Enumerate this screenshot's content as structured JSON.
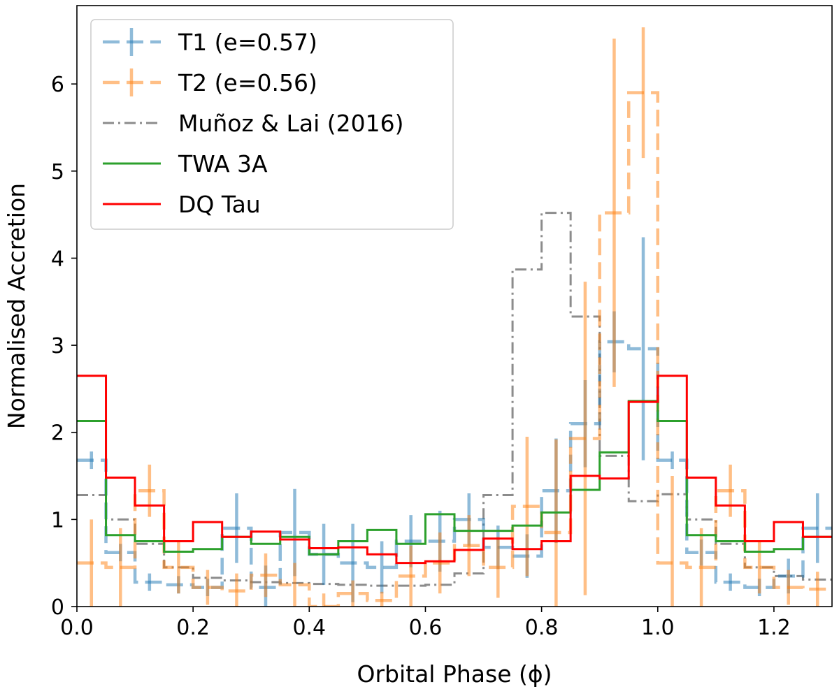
{
  "chart_data": {
    "type": "line",
    "subtype": "step-histogram",
    "title": "",
    "xlabel": "Orbital Phase (ϕ)",
    "ylabel": "Normalised Accretion",
    "xlim": [
      0.0,
      1.3
    ],
    "ylim": [
      0,
      6.9
    ],
    "x_ticks": [
      "0.0",
      "0.2",
      "0.4",
      "0.6",
      "0.8",
      "1.0",
      "1.2"
    ],
    "x_tick_values": [
      0.0,
      0.2,
      0.4,
      0.6,
      0.8,
      1.0,
      1.2
    ],
    "y_ticks": [
      "0",
      "1",
      "2",
      "3",
      "4",
      "5",
      "6"
    ],
    "y_tick_values": [
      0,
      1,
      2,
      3,
      4,
      5,
      6
    ],
    "legend_position": "top-left",
    "bin_width": 0.05,
    "series": [
      {
        "name": "Muñoz & Lai (2016)",
        "color": "#7f7f7f",
        "style": "dashdot",
        "bin_starts": [
          0.0,
          0.05,
          0.1,
          0.15,
          0.2,
          0.25,
          0.3,
          0.35,
          0.4,
          0.45,
          0.5,
          0.55,
          0.6,
          0.65,
          0.7,
          0.75,
          0.8,
          0.85,
          0.9,
          0.95,
          1.0,
          1.05,
          1.1,
          1.15,
          1.2,
          1.25
        ],
        "values": [
          1.28,
          1.0,
          0.72,
          0.45,
          0.33,
          0.3,
          0.28,
          0.27,
          0.26,
          0.25,
          0.24,
          0.24,
          0.25,
          0.38,
          1.28,
          3.87,
          4.52,
          3.33,
          1.73,
          1.21,
          1.29,
          1.0,
          0.72,
          0.45,
          0.35,
          0.31
        ]
      },
      {
        "name": "T1 (e=0.57)",
        "color": "#1f77b4",
        "style": "dashed",
        "errorbars": true,
        "bin_starts": [
          0.0,
          0.05,
          0.1,
          0.15,
          0.2,
          0.25,
          0.3,
          0.35,
          0.4,
          0.45,
          0.5,
          0.55,
          0.6,
          0.65,
          0.7,
          0.75,
          0.8,
          0.85,
          0.9,
          0.95,
          1.0,
          1.05,
          1.1,
          1.15,
          1.2,
          1.25
        ],
        "values": [
          1.68,
          0.62,
          0.28,
          0.25,
          0.22,
          0.9,
          0.22,
          0.85,
          0.6,
          0.5,
          0.45,
          0.75,
          0.75,
          1.0,
          0.68,
          0.58,
          1.33,
          2.1,
          3.04,
          2.96,
          1.68,
          0.62,
          0.28,
          0.22,
          0.35,
          0.9
        ],
        "errors": [
          0.1,
          0.1,
          0.1,
          0.1,
          0.1,
          0.4,
          0.25,
          0.5,
          0.35,
          0.45,
          0.3,
          0.3,
          0.35,
          0.3,
          0.25,
          0.25,
          0.6,
          0.5,
          0.35,
          1.28,
          0.1,
          0.15,
          0.1,
          0.1,
          0.2,
          0.4
        ]
      },
      {
        "name": "T2 (e=0.56)",
        "color": "#ff7f0e",
        "style": "dashed",
        "errorbars": true,
        "bin_starts": [
          0.0,
          0.05,
          0.1,
          0.15,
          0.2,
          0.25,
          0.3,
          0.35,
          0.4,
          0.45,
          0.5,
          0.55,
          0.6,
          0.65,
          0.7,
          0.75,
          0.8,
          0.85,
          0.9,
          0.95,
          1.0,
          1.05,
          1.1,
          1.15,
          1.2,
          1.25
        ],
        "values": [
          0.5,
          0.45,
          1.33,
          0.45,
          0.22,
          0.18,
          0.36,
          0.25,
          0.0,
          0.15,
          0.07,
          0.35,
          0.5,
          0.7,
          0.45,
          1.15,
          0.85,
          1.93,
          4.52,
          5.9,
          0.5,
          0.45,
          1.33,
          0.45,
          0.22,
          0.2
        ],
        "errors": [
          0.5,
          0.45,
          0.3,
          0.3,
          0.2,
          0.2,
          0.25,
          0.25,
          0.15,
          0.15,
          0.1,
          0.35,
          0.35,
          0.35,
          0.35,
          0.8,
          1.07,
          1.8,
          2.0,
          0.75,
          1.0,
          0.45,
          0.3,
          0.3,
          0.2,
          0.2
        ]
      },
      {
        "name": "TWA 3A",
        "color": "#2ca02c",
        "style": "solid",
        "bin_starts": [
          0.0,
          0.05,
          0.1,
          0.15,
          0.2,
          0.25,
          0.3,
          0.35,
          0.4,
          0.45,
          0.5,
          0.55,
          0.6,
          0.65,
          0.7,
          0.75,
          0.8,
          0.85,
          0.9,
          0.95,
          1.0,
          1.05,
          1.1,
          1.15,
          1.2,
          1.25
        ],
        "values": [
          2.13,
          0.82,
          0.75,
          0.63,
          0.66,
          0.8,
          0.72,
          0.8,
          0.6,
          0.75,
          0.88,
          0.72,
          1.06,
          0.87,
          0.87,
          0.93,
          1.08,
          1.34,
          1.77,
          2.36,
          2.13,
          0.82,
          0.75,
          0.63,
          0.66,
          0.8
        ]
      },
      {
        "name": "DQ Tau",
        "color": "#ff0000",
        "style": "solid",
        "bin_starts": [
          0.0,
          0.05,
          0.1,
          0.15,
          0.2,
          0.25,
          0.3,
          0.35,
          0.4,
          0.45,
          0.5,
          0.55,
          0.6,
          0.65,
          0.7,
          0.75,
          0.8,
          0.85,
          0.9,
          0.95,
          1.0,
          1.05,
          1.1,
          1.15,
          1.2,
          1.25
        ],
        "values": [
          2.65,
          1.48,
          1.16,
          0.75,
          0.97,
          0.8,
          0.86,
          0.77,
          0.67,
          0.68,
          0.6,
          0.5,
          0.52,
          0.65,
          0.78,
          0.66,
          0.75,
          1.5,
          1.47,
          2.35,
          2.65,
          1.48,
          1.16,
          0.75,
          0.97,
          0.8
        ]
      }
    ],
    "legend_order": [
      "T1 (e=0.57)",
      "T2 (e=0.56)",
      "Muñoz & Lai (2016)",
      "TWA 3A",
      "DQ Tau"
    ]
  }
}
